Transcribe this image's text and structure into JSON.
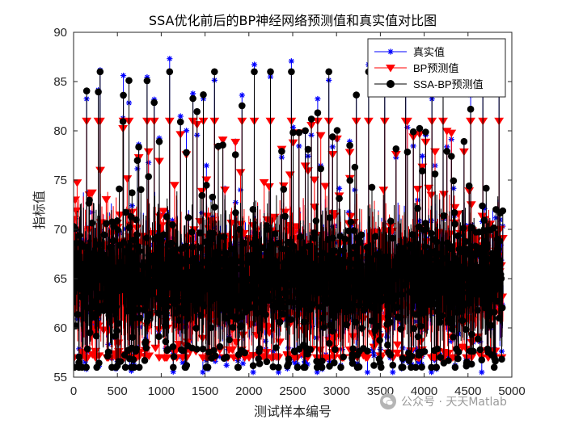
{
  "chart_data": {
    "type": "line",
    "title": "SSA优化前后的BP神经网络预测值和真实值对比图",
    "xlabel": "测试样本编号",
    "ylabel": "指标值",
    "xlim": [
      0,
      5000
    ],
    "ylim": [
      55,
      90
    ],
    "xticks": [
      0,
      500,
      1000,
      1500,
      2000,
      2500,
      3000,
      3500,
      4000,
      4500,
      5000
    ],
    "yticks": [
      55,
      60,
      65,
      70,
      75,
      80,
      85,
      90
    ],
    "n_samples": 4900,
    "legend_position": "top-right",
    "grid": false,
    "series": [
      {
        "name": "真实值",
        "color": "#0000ff",
        "marker": "asterisk",
        "center": 65,
        "spread": 3.2,
        "low": 55.5,
        "high": 87.5
      },
      {
        "name": "BP预测值",
        "color": "#ff0000",
        "marker": "triangle-down",
        "center": 65,
        "spread": 2.6,
        "low": 57,
        "high": 81
      },
      {
        "name": "SSA-BP预测值",
        "color": "#000000",
        "marker": "circle",
        "center": 65,
        "spread": 3.0,
        "low": 56,
        "high": 86
      }
    ]
  },
  "watermark": {
    "icon": "wechat-icon",
    "text": "公众号 · 天天Matlab"
  }
}
